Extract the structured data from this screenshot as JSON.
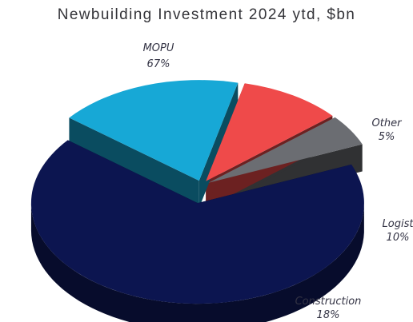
{
  "chart_data": {
    "type": "pie",
    "title": "Newbuilding Investment 2024 ytd, $bn",
    "slices": [
      {
        "label": "MOPU",
        "display": "67%",
        "value": 67,
        "color": "#0c1550"
      },
      {
        "label": "Construction",
        "display": "18%",
        "value": 18,
        "color": "#17a8d6"
      },
      {
        "label": "Logist",
        "display": "10%",
        "value": 10,
        "color": "#ef4a4a"
      },
      {
        "label": "Other",
        "display": "5%",
        "value": 5,
        "color": "#6b6d72"
      }
    ]
  }
}
